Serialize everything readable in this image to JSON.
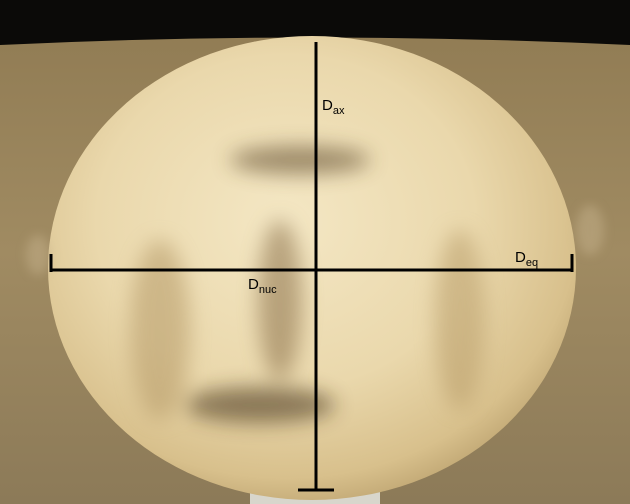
{
  "labels": [
    {
      "main": "D",
      "sub": "ax"
    },
    {
      "main": "D",
      "sub": "eq"
    },
    {
      "main": "D",
      "sub": "nuc"
    }
  ]
}
